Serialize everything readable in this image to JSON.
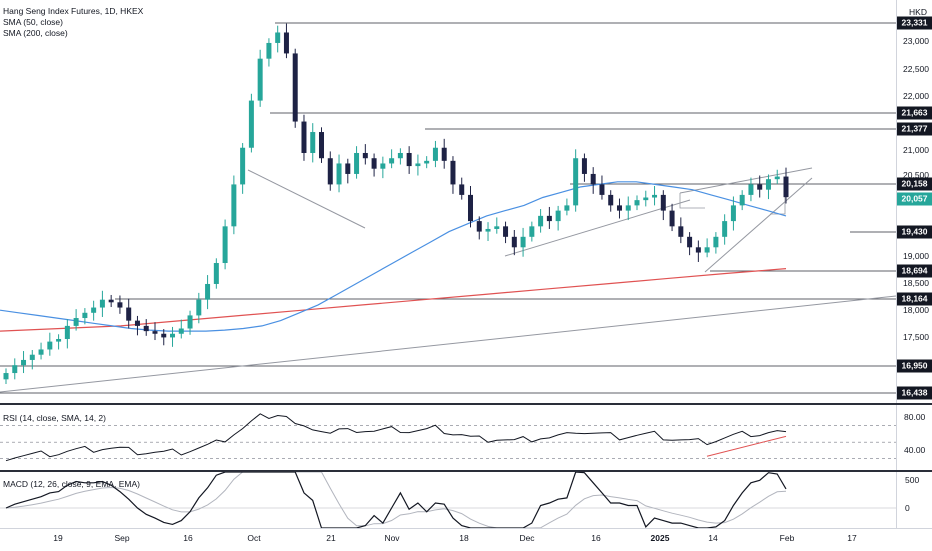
{
  "currency": "HKD",
  "legend": {
    "symbol": "Hang Seng Index Futures, 1D, HKEX",
    "sma50": "SMA (50, close)",
    "sma200": "SMA (200, close)",
    "rsi": "RSI (14, close, SMA, 14, 2)",
    "macd": "MACD (12, 26, close, 9, EMA, EMA)"
  },
  "price_axis_labels": [
    "23,000",
    "22,500",
    "22,000",
    "21,000",
    "20,500",
    "19,000",
    "18,500",
    "18,000",
    "17,500"
  ],
  "price_tags": [
    {
      "text": "23,331",
      "kind": "level"
    },
    {
      "text": "21,663",
      "kind": "level"
    },
    {
      "text": "21,377",
      "kind": "level"
    },
    {
      "text": "20,158",
      "kind": "level"
    },
    {
      "text": "20,057",
      "kind": "last"
    },
    {
      "text": "19,430",
      "kind": "level"
    },
    {
      "text": "18,694",
      "kind": "level"
    },
    {
      "text": "18,164",
      "kind": "level"
    },
    {
      "text": "16,950",
      "kind": "level"
    },
    {
      "text": "16,438",
      "kind": "level"
    }
  ],
  "rsi_axis_labels": [
    "80.00",
    "40.00"
  ],
  "macd_axis_labels": [
    "500",
    "0"
  ],
  "time_axis_labels": [
    "19",
    "Sep",
    "16",
    "Oct",
    "21",
    "Nov",
    "18",
    "Dec",
    "16",
    "2025",
    "14",
    "Feb",
    "17"
  ],
  "colors": {
    "up": "#26a69a",
    "down": "#1e2245",
    "sma50": "#4a90e2",
    "sma200": "#e05252",
    "last_tag": "#26a69a",
    "level_tag": "#131722",
    "trend": "#9598a1"
  },
  "chart_data": {
    "type": "candlestick",
    "price_range": [
      16300,
      23400
    ],
    "closes": [
      16700,
      16850,
      16950,
      17050,
      17150,
      17300,
      17350,
      17600,
      17750,
      17850,
      17950,
      18100,
      18050,
      17950,
      17700,
      17600,
      17500,
      17450,
      17380,
      17450,
      17550,
      17800,
      18100,
      18400,
      18800,
      19500,
      20300,
      21000,
      21900,
      22700,
      23000,
      23200,
      22800,
      21500,
      20900,
      21300,
      20800,
      20300,
      20700,
      20500,
      20900,
      20800,
      20600,
      20700,
      20800,
      20900,
      20650,
      20700,
      20750,
      21000,
      20750,
      20300,
      20100,
      19600,
      19400,
      19450,
      19500,
      19300,
      19100,
      19300,
      19500,
      19700,
      19600,
      19800,
      19900,
      20800,
      20500,
      20300,
      20100,
      19900,
      19800,
      19900,
      20000,
      20050,
      20100,
      19800,
      19500,
      19300,
      19100,
      19000,
      19100,
      19300,
      19600,
      19900,
      20100,
      20300,
      20200,
      20400,
      20450,
      20057
    ],
    "sma50_approx": [
      17900,
      17850,
      17800,
      17750,
      17700,
      17650,
      17600,
      17550,
      17520,
      17500,
      17500,
      17500,
      17520,
      17550,
      17600,
      17700,
      17850,
      18000,
      18200,
      18400,
      18600,
      18800,
      19000,
      19200,
      19400,
      19550,
      19700,
      19800,
      19900,
      20050,
      20150,
      20250,
      20300,
      20350,
      20350,
      20300,
      20250,
      20200,
      20100,
      20000,
      19900,
      19800,
      19700
    ],
    "sma200_approx": [
      17500,
      17550,
      17600,
      17700,
      17800,
      17900,
      18000,
      18100,
      18200,
      18300,
      18400,
      18500,
      18600,
      18694
    ],
    "rsi": {
      "range": [
        20,
        90
      ],
      "guides": [
        70,
        50,
        30
      ]
    },
    "macd": {
      "guides": [
        0
      ]
    }
  }
}
